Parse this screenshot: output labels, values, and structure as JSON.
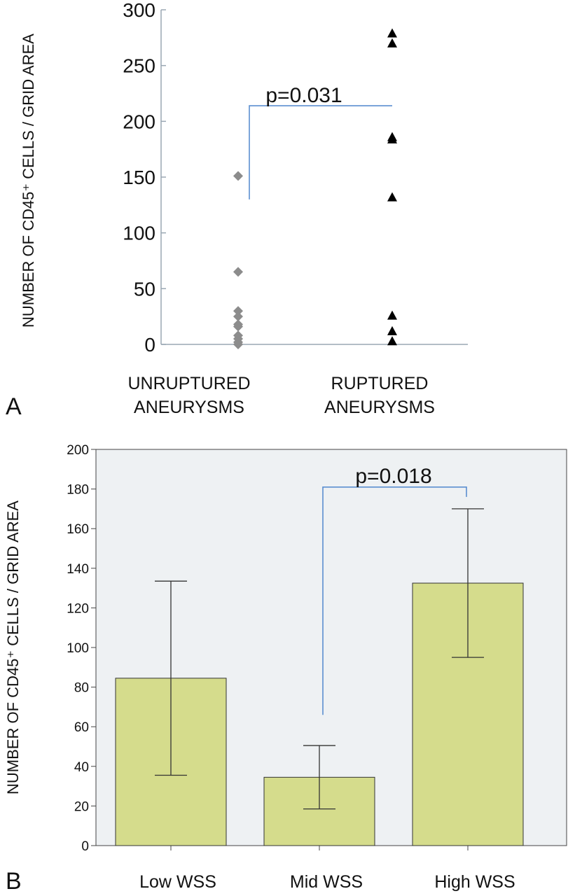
{
  "chart_data": [
    {
      "panel": "A",
      "type": "scatter",
      "ylabel": "NUMBER OF CD45⁺ CELLS / GRID AREA",
      "ylim": [
        0,
        300
      ],
      "yticks": [
        "0",
        "50",
        "100",
        "150",
        "200",
        "250",
        "300"
      ],
      "categories": [
        "UNRUPTURED\nANEURYSMS",
        "RUPTURED\nANEURYSMS"
      ],
      "series": [
        {
          "category": 0,
          "marker": "diamond",
          "color": "#8c8c8c",
          "values": [
            151,
            65,
            30,
            25,
            18,
            16,
            8,
            5,
            2,
            0
          ]
        },
        {
          "category": 1,
          "marker": "triangle",
          "color": "#000000",
          "values": [
            279,
            270,
            186,
            184,
            132,
            26,
            12,
            3
          ]
        }
      ],
      "annotation": {
        "text": "p=0.031",
        "bracket_from": 0,
        "bracket_to": 1,
        "bracket_y": 214,
        "left_tick_bottom": 130,
        "color": "#5b8fd0"
      },
      "grid": false
    },
    {
      "panel": "B",
      "type": "bar",
      "ylabel": "NUMBER OF CD45⁺ CELLS / GRID AREA",
      "ylim": [
        0,
        200
      ],
      "yticks": [
        "0",
        "20",
        "40",
        "60",
        "80",
        "100",
        "120",
        "140",
        "160",
        "180",
        "200"
      ],
      "categories": [
        "Low WSS",
        "Mid WSS",
        "High WSS"
      ],
      "values": [
        84.5,
        34.5,
        132.5
      ],
      "error_low": [
        35.5,
        18.5,
        95
      ],
      "error_high": [
        133.5,
        50.5,
        170
      ],
      "bar_color": "#d5dc8c",
      "plot_background": "#eef1f3",
      "annotation": {
        "text": "p=0.018",
        "bracket_from": 1,
        "bracket_to": 2,
        "bracket_y": 181,
        "left_tick_bottom": 66,
        "right_tick_bottom": 176,
        "color": "#5b8fd0"
      },
      "grid": false
    }
  ],
  "panel_labels": [
    "A",
    "B"
  ]
}
